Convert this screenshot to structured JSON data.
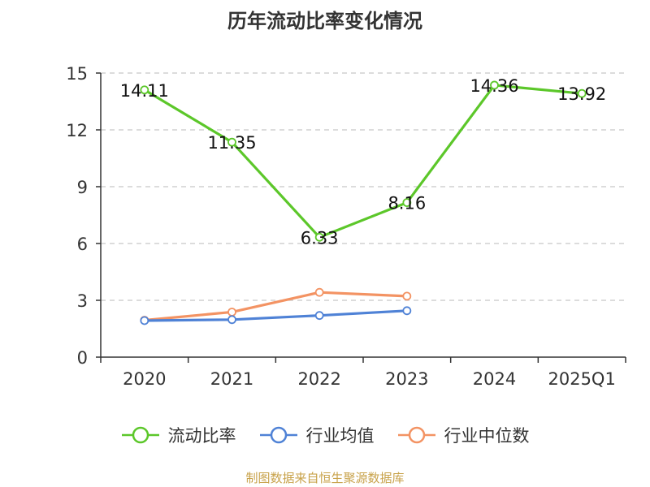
{
  "chart_data": {
    "type": "line",
    "title": "历年流动比率变化情况",
    "categories": [
      "2020",
      "2021",
      "2022",
      "2023",
      "2024",
      "2025Q1"
    ],
    "series": [
      {
        "name": "流动比率",
        "color": "#5cc72a",
        "values": [
          14.11,
          11.35,
          6.33,
          8.16,
          14.36,
          13.92
        ],
        "labels": [
          "14.11",
          "11.35",
          "6.33",
          "8.16",
          "14.36",
          "13.92"
        ]
      },
      {
        "name": "行业均值",
        "color": "#4f82d6",
        "values": [
          1.93,
          1.98,
          2.2,
          2.45,
          null,
          null
        ]
      },
      {
        "name": "行业中位数",
        "color": "#f39363",
        "values": [
          1.95,
          2.38,
          3.42,
          3.22,
          null,
          null
        ]
      }
    ],
    "ylim": [
      0,
      15
    ],
    "yticks": [
      0,
      3,
      6,
      9,
      12,
      15
    ],
    "grid": true,
    "legend": "bottom"
  },
  "source": {
    "text": "制图数据来自恒生聚源数据库",
    "color": "#c8a24a"
  }
}
